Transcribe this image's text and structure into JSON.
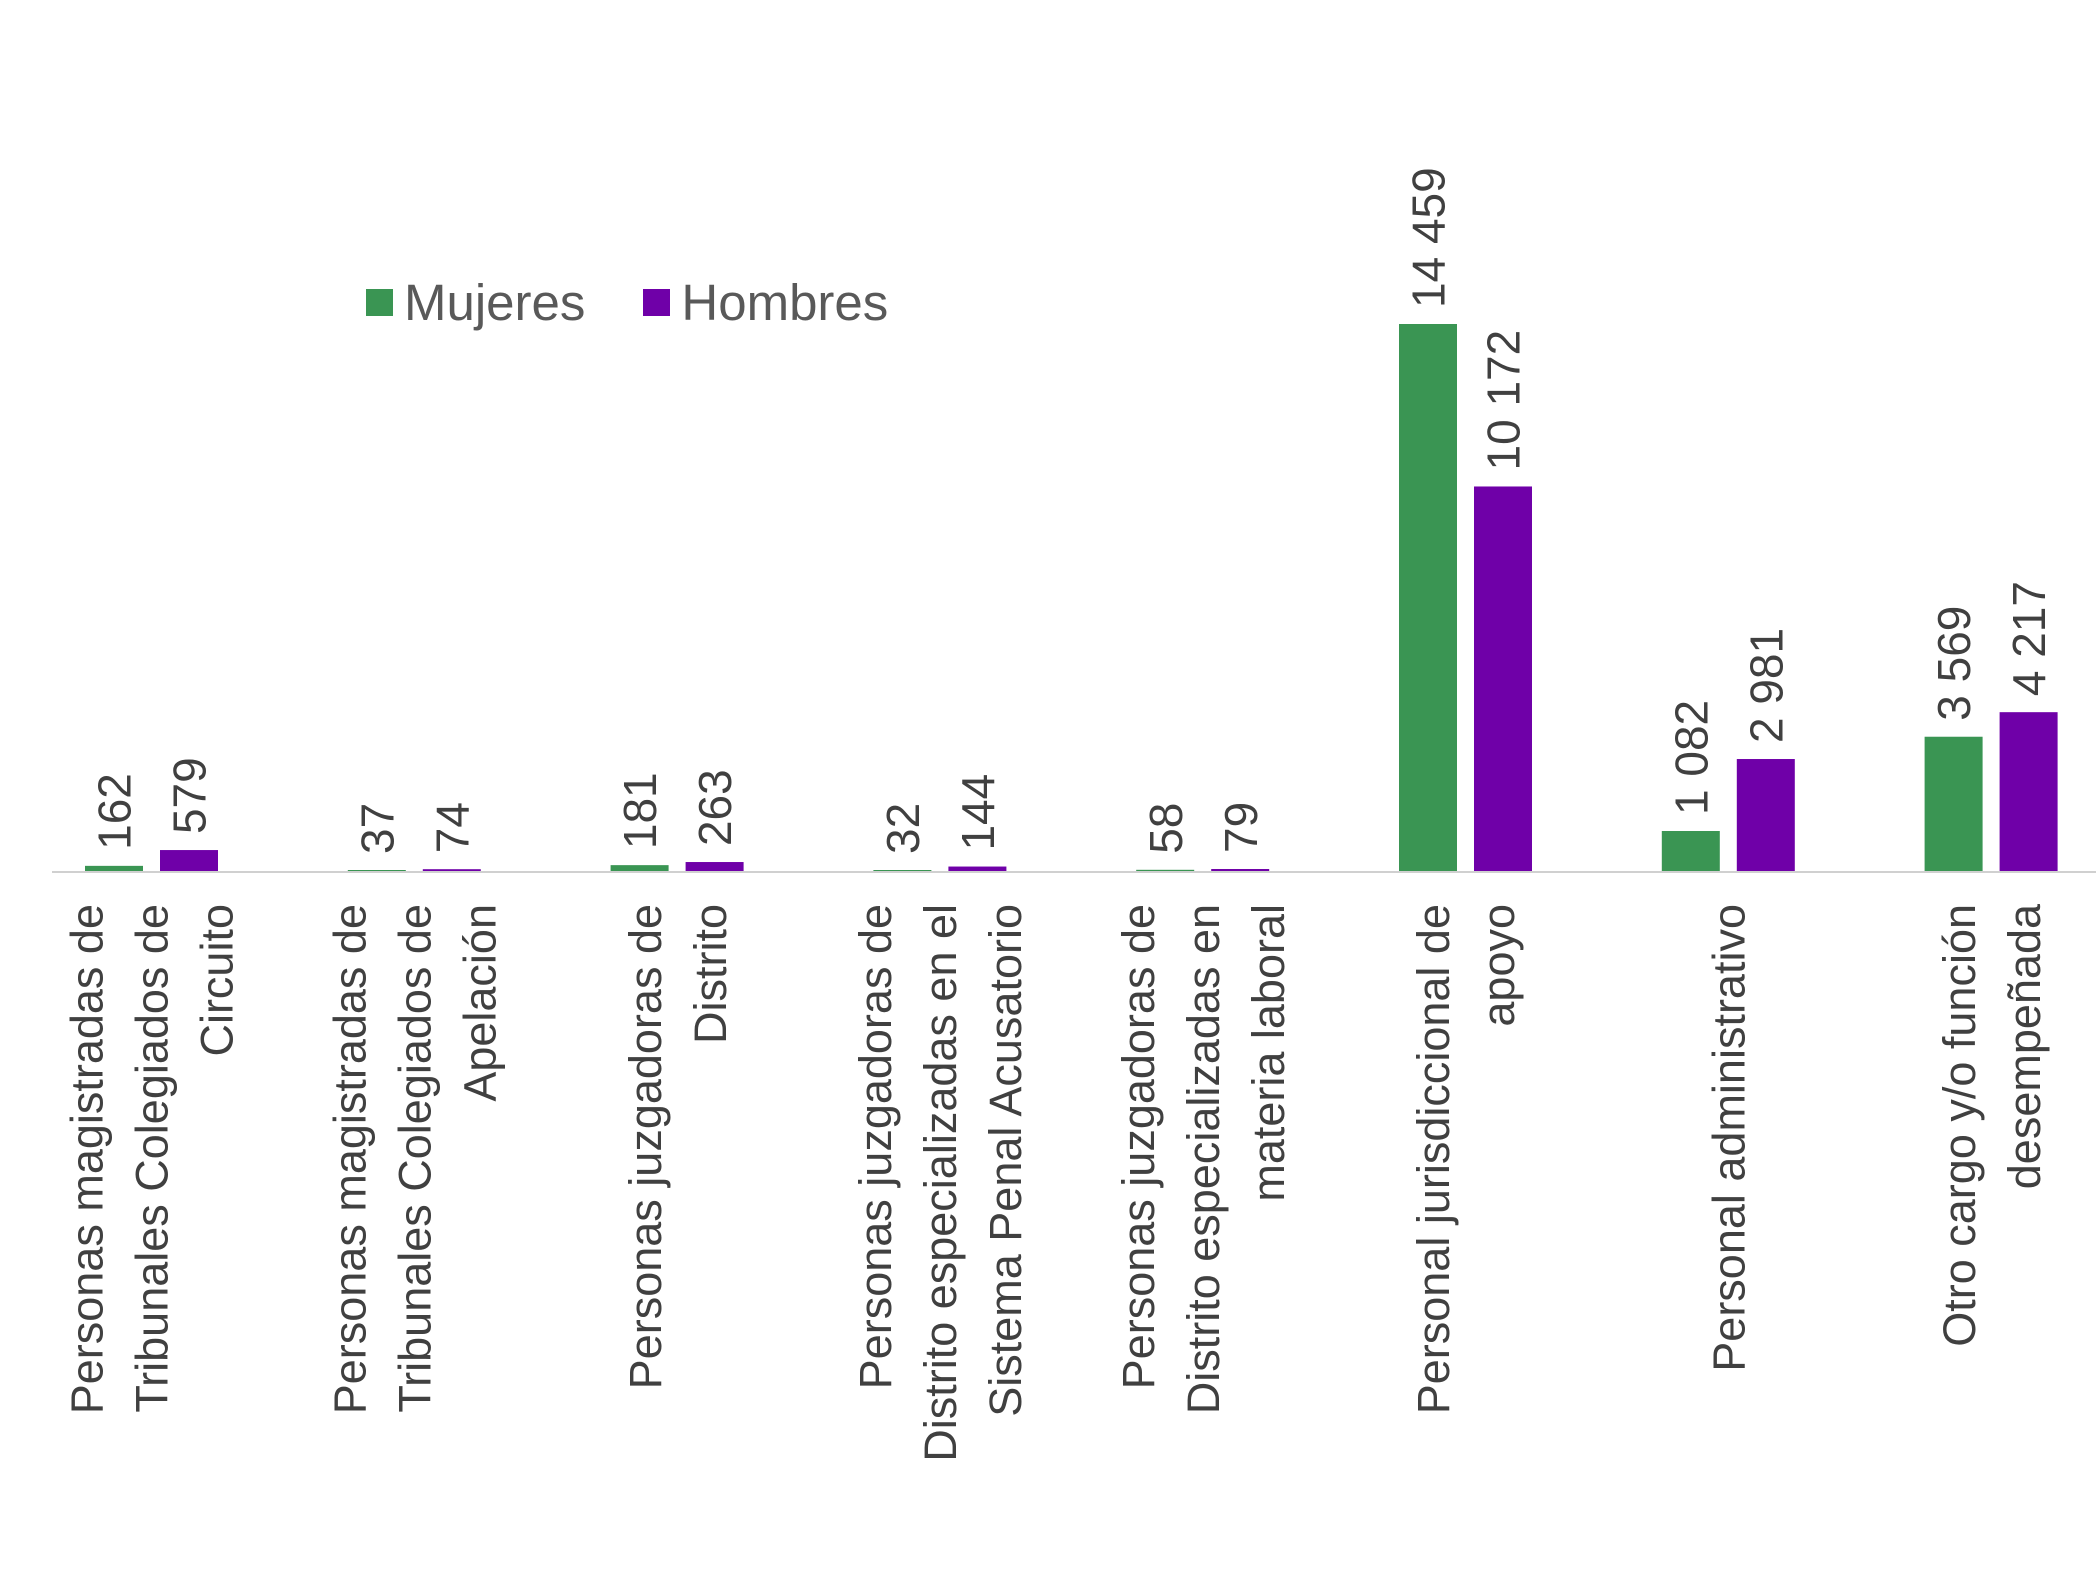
{
  "colors": {
    "mujeres": "#3a9553",
    "hombres": "#6f00a8",
    "axis": "#d0d0d0",
    "text": "#404040"
  },
  "chart_data": {
    "type": "bar",
    "title": "",
    "xlabel": "",
    "ylabel": "",
    "ylim": [
      0,
      16000
    ],
    "grid": false,
    "legend_position": "top-left",
    "categories": [
      [
        "Personas magistradas de",
        "Tribunales Colegiados de",
        "Circuito"
      ],
      [
        "Personas magistradas de",
        "Tribunales Colegiados de",
        "Apelación"
      ],
      [
        "Personas juzgadoras de",
        "Distrito"
      ],
      [
        "Personas juzgadoras de",
        "Distrito especializadas en el",
        "Sistema Penal Acusatorio"
      ],
      [
        "Personas juzgadoras de",
        "Distrito especializadas en",
        "materia laboral"
      ],
      [
        "Personal jurisdiccional de",
        "apoyo"
      ],
      [
        "Personal administrativo"
      ],
      [
        "Otro cargo y/o función",
        "desempeñada"
      ]
    ],
    "series": [
      {
        "name": "Mujeres",
        "color": "#3a9553",
        "values": [
          162,
          37,
          181,
          32,
          58,
          14459,
          1082,
          3569
        ],
        "labels": [
          "162",
          "37",
          "181",
          "32",
          "58",
          "14 459",
          "1 082",
          "3 569"
        ]
      },
      {
        "name": "Hombres",
        "color": "#6f00a8",
        "values": [
          579,
          74,
          263,
          144,
          79,
          10172,
          2981,
          4217
        ],
        "labels": [
          "579",
          "74",
          "263",
          "144",
          "79",
          "10 172",
          "2 981",
          "4 217"
        ]
      }
    ]
  }
}
